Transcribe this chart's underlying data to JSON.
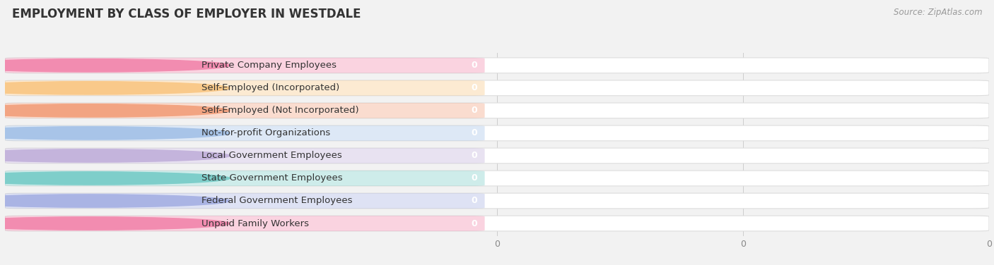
{
  "title": "EMPLOYMENT BY CLASS OF EMPLOYER IN WESTDALE",
  "source": "Source: ZipAtlas.com",
  "categories": [
    "Private Company Employees",
    "Self-Employed (Incorporated)",
    "Self-Employed (Not Incorporated)",
    "Not-for-profit Organizations",
    "Local Government Employees",
    "State Government Employees",
    "Federal Government Employees",
    "Unpaid Family Workers"
  ],
  "values": [
    0,
    0,
    0,
    0,
    0,
    0,
    0,
    0
  ],
  "bar_colors": [
    "#f28cb0",
    "#f9c98a",
    "#f2a482",
    "#a8c4e8",
    "#c4b4dc",
    "#7ececa",
    "#aab4e4",
    "#f28cb0"
  ],
  "background_color": "#f2f2f2",
  "label_box_color": "#ffffff",
  "title_fontsize": 12,
  "label_fontsize": 9.5,
  "value_fontsize": 9,
  "source_fontsize": 8.5
}
